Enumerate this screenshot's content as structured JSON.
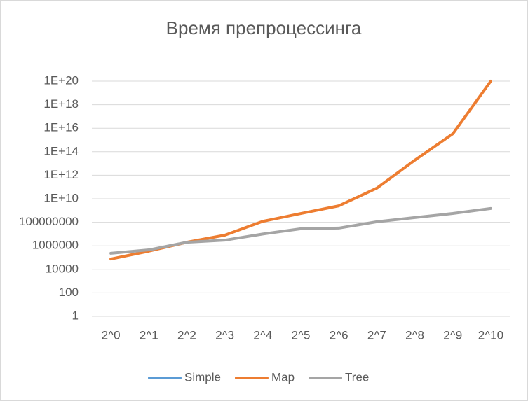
{
  "chart_data": {
    "type": "line",
    "title": "Время препроцессинга",
    "categories": [
      "2^0",
      "2^1",
      "2^2",
      "2^3",
      "2^4",
      "2^5",
      "2^6",
      "2^7",
      "2^8",
      "2^9",
      "2^10"
    ],
    "series": [
      {
        "name": "Simple",
        "color": "#5b9bd5",
        "values": [
          null,
          null,
          null,
          null,
          null,
          null,
          null,
          null,
          null,
          null,
          null
        ]
      },
      {
        "name": "Map",
        "color": "#ed7d31",
        "values": [
          75000,
          350000,
          2000000,
          8000000,
          120000000,
          560000000,
          2500000000,
          80000000000,
          19000000000000,
          3300000000000000,
          100000000000000000000
        ]
      },
      {
        "name": "Tree",
        "color": "#a5a5a5",
        "values": [
          230000,
          450000,
          2000000,
          3000000,
          10000000,
          28000000,
          32000000,
          110000000,
          250000000,
          560000000,
          1500000000
        ]
      }
    ],
    "ylim": [
      1,
      100000000000000000000
    ],
    "yticks": [
      1,
      100,
      10000,
      1000000,
      100000000,
      {
        "value": 10000000000,
        "label": "1E+10"
      },
      {
        "value": 1000000000000,
        "label": "1E+12"
      },
      {
        "value": 100000000000000,
        "label": "1E+14"
      },
      {
        "value": 10000000000000000,
        "label": "1E+16"
      },
      {
        "value": 1000000000000000000,
        "label": "1E+18"
      },
      {
        "value": 100000000000000000000,
        "label": "1E+20"
      }
    ],
    "log_scale": true,
    "grid": true,
    "legend": "bottom"
  }
}
